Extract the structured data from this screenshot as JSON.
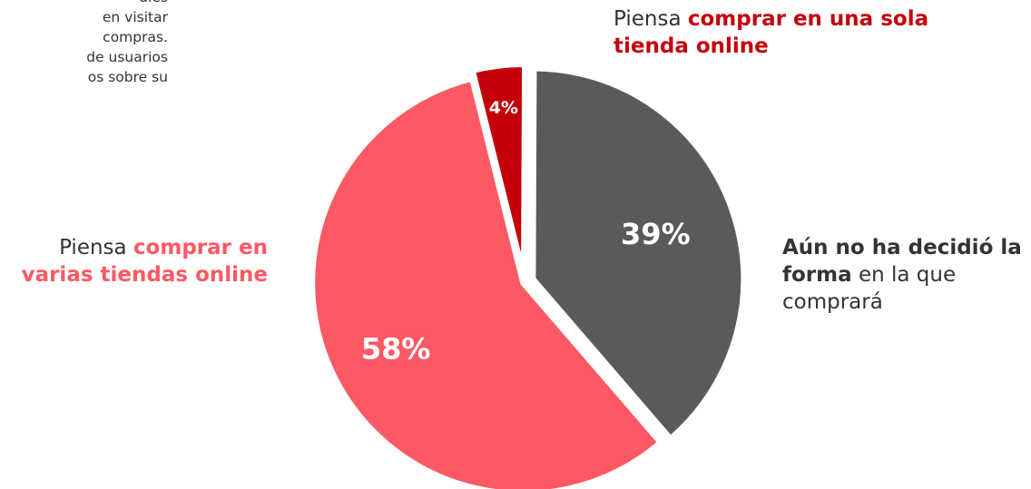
{
  "intro_text": "ales\nen visitar\ncompras.\nde usuarios\nos sobre su",
  "colors": {
    "red_dark": "#c4000b",
    "red_light": "#fc5964",
    "gray": "#5a5a5a",
    "text": "#333333"
  },
  "chart_data": {
    "type": "pie",
    "slices": [
      {
        "value": 4,
        "label": "4%",
        "legend_normal": "Piensa ",
        "legend_bold": "comprar en una sola tienda online",
        "color": "#c4000b"
      },
      {
        "value": 39,
        "label": "39%",
        "legend_bold": "Aún no ha decidió la forma",
        "legend_normal": " en la que comprará",
        "color": "#5a5a5a"
      },
      {
        "value": 58,
        "label": "58%",
        "legend_normal": "Piensa ",
        "legend_bold": "comprar en varias tiendas online",
        "color": "#fc5964"
      }
    ]
  }
}
